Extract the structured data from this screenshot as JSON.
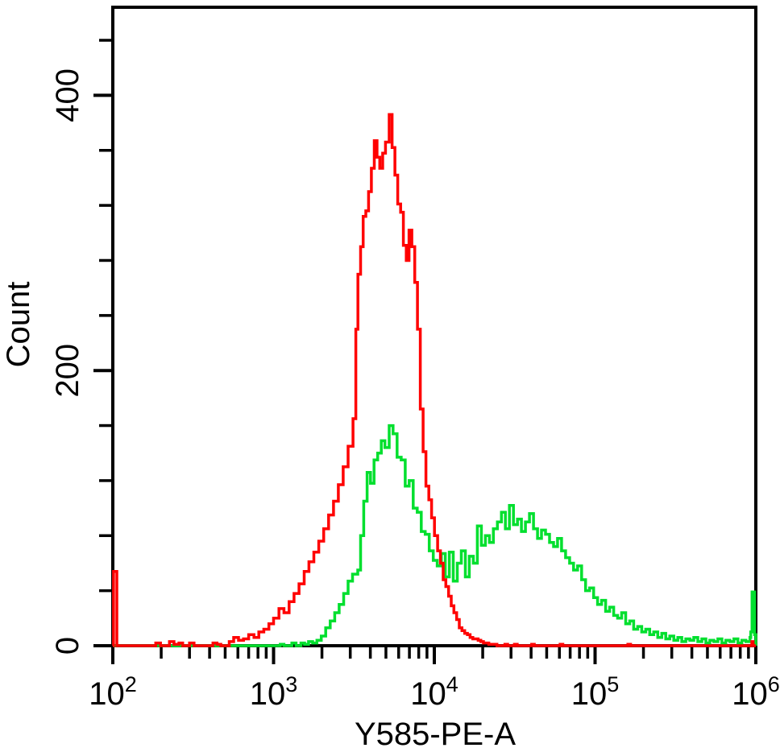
{
  "figure": {
    "background": "#ffffff",
    "description": "Flow cytometry overlay histogram, two step-outline curves (red control, green stained sample) on a log fluorescence axis"
  },
  "chart_data": {
    "type": "line",
    "subtype": "step-histogram-overlay",
    "title": "",
    "xlabel": "Y585-PE-A",
    "ylabel": "Count",
    "x_scale": "log",
    "xlim": [
      100,
      1000000
    ],
    "ylim": [
      0,
      464
    ],
    "x_tick_base": "10",
    "x_tick_exponents": [
      2,
      3,
      4,
      5,
      6
    ],
    "x_minor_tick_multipliers": [
      2,
      3,
      4,
      5,
      6,
      7,
      8,
      9
    ],
    "y_ticks": [
      0,
      200,
      400
    ],
    "y_minor_tick_step": 40,
    "grid": false,
    "legend_position": "none",
    "axis_color": "#000000",
    "series": [
      {
        "name": "red-control-histogram",
        "color": "#ff0000",
        "peak": {
          "x": 5240,
          "count": 386
        },
        "points": [
          [
            100,
            0
          ],
          [
            101,
            54
          ],
          [
            106,
            0
          ],
          [
            185,
            2
          ],
          [
            198,
            0
          ],
          [
            225,
            3
          ],
          [
            240,
            1
          ],
          [
            258,
            2
          ],
          [
            272,
            0
          ],
          [
            300,
            2
          ],
          [
            320,
            0
          ],
          [
            420,
            2
          ],
          [
            445,
            1
          ],
          [
            470,
            0
          ],
          [
            530,
            3
          ],
          [
            565,
            6
          ],
          [
            605,
            4
          ],
          [
            650,
            5
          ],
          [
            700,
            8
          ],
          [
            755,
            6
          ],
          [
            810,
            10
          ],
          [
            870,
            12
          ],
          [
            935,
            16
          ],
          [
            1000,
            20
          ],
          [
            1080,
            27
          ],
          [
            1160,
            24
          ],
          [
            1250,
            32
          ],
          [
            1340,
            38
          ],
          [
            1440,
            45
          ],
          [
            1550,
            54
          ],
          [
            1660,
            61
          ],
          [
            1780,
            68
          ],
          [
            1910,
            76
          ],
          [
            2050,
            85
          ],
          [
            2200,
            95
          ],
          [
            2360,
            105
          ],
          [
            2530,
            117
          ],
          [
            2710,
            130
          ],
          [
            2910,
            145
          ],
          [
            3120,
            165
          ],
          [
            3250,
            230
          ],
          [
            3350,
            270
          ],
          [
            3480,
            290
          ],
          [
            3610,
            312
          ],
          [
            3750,
            316
          ],
          [
            3900,
            330
          ],
          [
            4060,
            347
          ],
          [
            4230,
            367
          ],
          [
            4400,
            355
          ],
          [
            4580,
            347
          ],
          [
            4770,
            358
          ],
          [
            4970,
            366
          ],
          [
            5240,
            386
          ],
          [
            5460,
            362
          ],
          [
            5690,
            342
          ],
          [
            5920,
            321
          ],
          [
            6170,
            315
          ],
          [
            6420,
            291
          ],
          [
            6690,
            280
          ],
          [
            6960,
            302
          ],
          [
            7250,
            290
          ],
          [
            7550,
            264
          ],
          [
            7860,
            230
          ],
          [
            8180,
            172
          ],
          [
            8520,
            141
          ],
          [
            8870,
            116
          ],
          [
            9240,
            106
          ],
          [
            9620,
            93
          ],
          [
            10020,
            80
          ],
          [
            10480,
            69
          ],
          [
            10920,
            60
          ],
          [
            11350,
            48
          ],
          [
            11800,
            43
          ],
          [
            12270,
            36
          ],
          [
            12740,
            29
          ],
          [
            13240,
            24
          ],
          [
            13760,
            19
          ],
          [
            14300,
            13
          ],
          [
            14860,
            11
          ],
          [
            15450,
            9
          ],
          [
            16070,
            8
          ],
          [
            16700,
            6
          ],
          [
            17360,
            5
          ],
          [
            18020,
            5
          ],
          [
            18730,
            4
          ],
          [
            19470,
            3
          ],
          [
            20210,
            2
          ],
          [
            21000,
            2
          ],
          [
            21830,
            1
          ],
          [
            22690,
            1
          ],
          [
            23590,
            1
          ],
          [
            24520,
            0
          ],
          [
            27500,
            1
          ],
          [
            28600,
            0
          ],
          [
            31500,
            1
          ],
          [
            32800,
            0
          ],
          [
            40300,
            1
          ],
          [
            41900,
            0
          ],
          [
            60600,
            1
          ],
          [
            63000,
            0
          ],
          [
            160000,
            1
          ],
          [
            166300,
            0
          ],
          [
            930000,
            0
          ],
          [
            944000,
            3
          ],
          [
            962000,
            0
          ],
          [
            1000000,
            0
          ]
        ]
      },
      {
        "name": "green-sample-histogram",
        "color": "#00df2e",
        "peak": {
          "x": 5240,
          "count": 160
        },
        "points": [
          [
            100,
            0
          ],
          [
            1050,
            0
          ],
          [
            1100,
            1
          ],
          [
            1160,
            0
          ],
          [
            1300,
            2
          ],
          [
            1380,
            0
          ],
          [
            1480,
            2
          ],
          [
            1560,
            1
          ],
          [
            1650,
            3
          ],
          [
            1750,
            2
          ],
          [
            1860,
            4
          ],
          [
            1980,
            7
          ],
          [
            2110,
            13
          ],
          [
            2250,
            18
          ],
          [
            2400,
            24
          ],
          [
            2560,
            30
          ],
          [
            2730,
            38
          ],
          [
            2910,
            47
          ],
          [
            3100,
            52
          ],
          [
            3340,
            55
          ],
          [
            3480,
            80
          ],
          [
            3640,
            105
          ],
          [
            3820,
            126
          ],
          [
            4010,
            118
          ],
          [
            4220,
            135
          ],
          [
            4440,
            140
          ],
          [
            4680,
            149
          ],
          [
            4930,
            144
          ],
          [
            5240,
            160
          ],
          [
            5540,
            154
          ],
          [
            5870,
            137
          ],
          [
            6220,
            135
          ],
          [
            6590,
            116
          ],
          [
            6980,
            120
          ],
          [
            7390,
            100
          ],
          [
            7830,
            97
          ],
          [
            8290,
            83
          ],
          [
            8780,
            81
          ],
          [
            9300,
            69
          ],
          [
            9850,
            62
          ],
          [
            10430,
            58
          ],
          [
            11050,
            67
          ],
          [
            11700,
            50
          ],
          [
            12390,
            68
          ],
          [
            13120,
            47
          ],
          [
            13900,
            60
          ],
          [
            14720,
            69
          ],
          [
            15590,
            50
          ],
          [
            16510,
            65
          ],
          [
            17490,
            60
          ],
          [
            18520,
            87
          ],
          [
            19620,
            73
          ],
          [
            20780,
            80
          ],
          [
            22010,
            75
          ],
          [
            23310,
            85
          ],
          [
            24690,
            90
          ],
          [
            26150,
            97
          ],
          [
            27690,
            85
          ],
          [
            29330,
            102
          ],
          [
            31060,
            88
          ],
          [
            32900,
            92
          ],
          [
            34840,
            83
          ],
          [
            36900,
            90
          ],
          [
            39080,
            96
          ],
          [
            41390,
            85
          ],
          [
            43840,
            78
          ],
          [
            46430,
            84
          ],
          [
            49170,
            81
          ],
          [
            52080,
            75
          ],
          [
            55160,
            72
          ],
          [
            58420,
            78
          ],
          [
            61870,
            69
          ],
          [
            65530,
            64
          ],
          [
            69400,
            60
          ],
          [
            73500,
            55
          ],
          [
            77840,
            58
          ],
          [
            82440,
            48
          ],
          [
            87310,
            40
          ],
          [
            92470,
            42
          ],
          [
            97940,
            35
          ],
          [
            103700,
            30
          ],
          [
            109800,
            33
          ],
          [
            116300,
            25
          ],
          [
            123200,
            28
          ],
          [
            130500,
            22
          ],
          [
            138200,
            20
          ],
          [
            146400,
            24
          ],
          [
            155000,
            16
          ],
          [
            164200,
            18
          ],
          [
            173900,
            12
          ],
          [
            184200,
            14
          ],
          [
            195100,
            10
          ],
          [
            206600,
            12
          ],
          [
            218800,
            8
          ],
          [
            231700,
            10
          ],
          [
            245400,
            6
          ],
          [
            259900,
            9
          ],
          [
            275300,
            5
          ],
          [
            291600,
            7
          ],
          [
            308800,
            4
          ],
          [
            327000,
            6
          ],
          [
            346300,
            3
          ],
          [
            366800,
            5
          ],
          [
            388500,
            4
          ],
          [
            411400,
            6
          ],
          [
            435700,
            3
          ],
          [
            461400,
            5
          ],
          [
            488700,
            2
          ],
          [
            517600,
            4
          ],
          [
            548200,
            3
          ],
          [
            580600,
            5
          ],
          [
            614900,
            2
          ],
          [
            651200,
            4
          ],
          [
            689700,
            3
          ],
          [
            730400,
            5
          ],
          [
            773600,
            2
          ],
          [
            819300,
            4
          ],
          [
            867700,
            3
          ],
          [
            918900,
            6
          ],
          [
            930000,
            10
          ],
          [
            947000,
            39
          ],
          [
            983000,
            8
          ],
          [
            1000000,
            0
          ]
        ]
      }
    ]
  }
}
